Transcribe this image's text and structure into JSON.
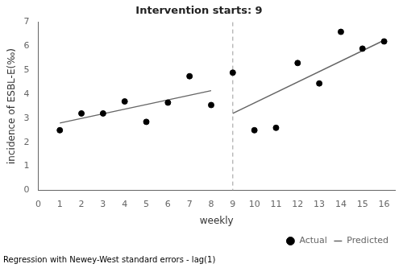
{
  "chart_data": {
    "type": "scatter",
    "title": "Intervention starts: 9",
    "xlabel": "weekly",
    "ylabel": "incidence of ESBL-E(‰)",
    "footnote": "Regression with Newey-West standard errors - lag(1)",
    "series": [
      {
        "name": "Actual",
        "type": "scatter",
        "color": "black",
        "marker": "circle",
        "x": [
          1,
          2,
          3,
          4,
          5,
          6,
          7,
          8,
          9,
          10,
          11,
          12,
          13,
          14,
          15,
          16
        ],
        "values": [
          2.5,
          3.2,
          3.2,
          3.7,
          2.85,
          3.65,
          4.75,
          3.55,
          4.9,
          2.5,
          2.6,
          5.3,
          4.45,
          6.6,
          5.9,
          6.2
        ]
      },
      {
        "name": "Predicted",
        "type": "line",
        "color": "#666666",
        "line_style": "solid",
        "x": [
          1,
          8,
          null,
          9,
          16
        ],
        "values": [
          2.8,
          4.15,
          null,
          3.2,
          6.25
        ]
      }
    ],
    "annotations": [
      {
        "type": "vline",
        "x": 9,
        "color": "#999999",
        "line_style": "dashed"
      }
    ],
    "xlim": [
      0,
      16.5
    ],
    "ylim": [
      0,
      7
    ],
    "xticks": [
      0,
      1,
      2,
      3,
      4,
      5,
      6,
      7,
      8,
      9,
      10,
      11,
      12,
      13,
      14,
      15,
      16
    ],
    "yticks": [
      0,
      1,
      2,
      3,
      4,
      5,
      6,
      7
    ],
    "grid": false,
    "legend": "lower right"
  }
}
